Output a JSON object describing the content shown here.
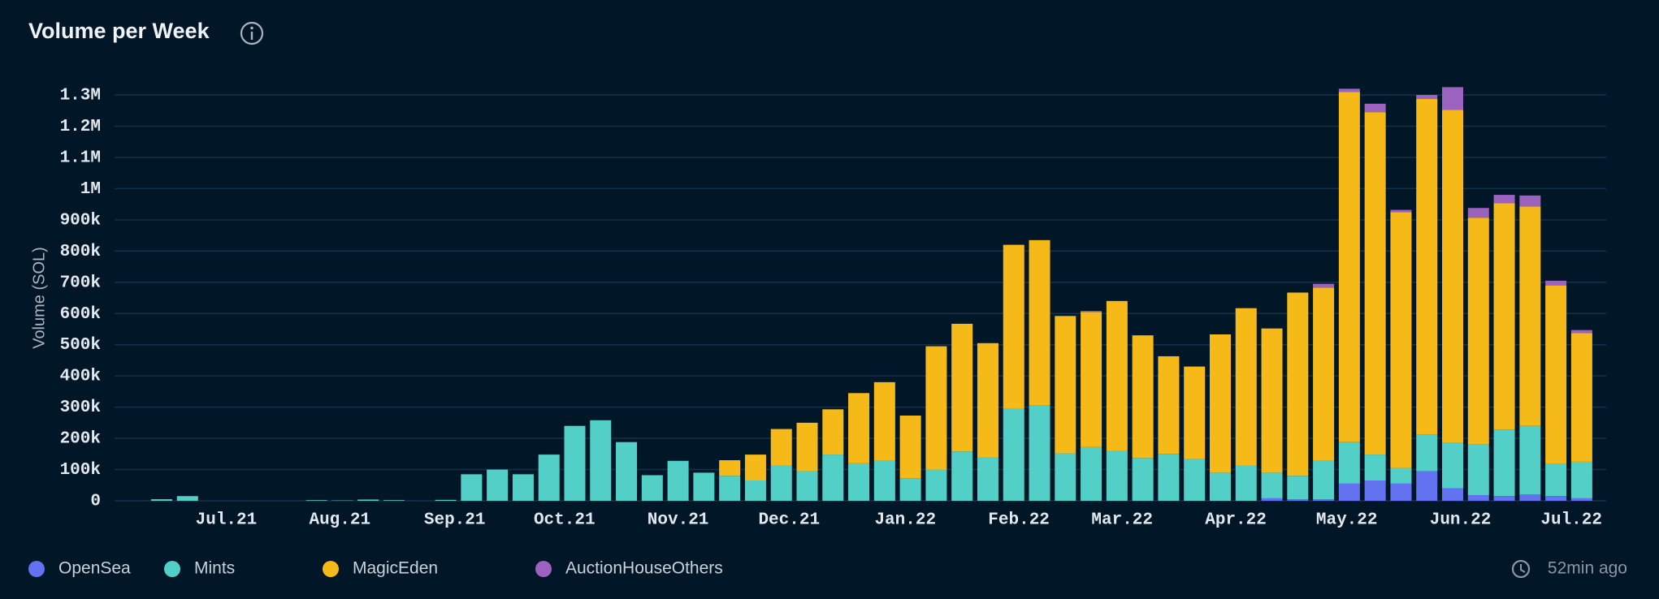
{
  "chart_data": {
    "type": "stacked_bar",
    "title": "Volume per Week",
    "y_label": "Volume (SOL)",
    "updated": "52min ago",
    "categories": [
      null,
      null,
      null,
      null,
      null,
      null,
      null,
      null,
      null,
      null,
      null,
      null,
      null,
      null,
      null,
      null,
      null,
      null,
      null,
      null,
      null,
      null,
      null,
      null,
      null,
      null,
      null,
      null,
      null,
      null,
      null,
      null,
      null,
      null,
      null,
      null,
      null,
      null,
      null,
      null,
      null,
      null,
      null,
      null,
      null,
      null,
      null,
      null,
      null,
      null,
      null,
      null,
      null,
      null,
      null,
      null
    ],
    "xticks": [
      {
        "value": 2.5,
        "label": "Jul.21"
      },
      {
        "value": 6.9,
        "label": "Aug.21"
      },
      {
        "value": 11.35,
        "label": "Sep.21"
      },
      {
        "value": 15.6,
        "label": "Oct.21"
      },
      {
        "value": 20.0,
        "label": "Nov.21"
      },
      {
        "value": 24.3,
        "label": "Dec.21"
      },
      {
        "value": 28.8,
        "label": "Jan.22"
      },
      {
        "value": 33.2,
        "label": "Feb.22"
      },
      {
        "value": 37.2,
        "label": "Mar.22"
      },
      {
        "value": 41.6,
        "label": "Apr.22"
      },
      {
        "value": 45.9,
        "label": "May.22"
      },
      {
        "value": 50.3,
        "label": "Jun.22"
      },
      {
        "value": 54.6,
        "label": "Jul.22"
      }
    ],
    "series": [
      {
        "name": "OpenSea",
        "color": "#6272f0",
        "values": [
          0,
          0,
          0,
          0,
          0,
          0,
          0,
          0,
          0,
          0,
          0,
          0,
          0,
          0,
          0,
          0,
          0,
          0,
          0,
          0,
          0,
          0,
          0,
          0,
          0,
          0,
          0,
          0,
          0,
          0,
          0,
          0,
          0,
          0,
          0,
          0,
          0,
          0,
          0,
          0,
          0,
          0,
          0,
          8000,
          5000,
          5000,
          55000,
          65000,
          55000,
          95000,
          40000,
          18000,
          15000,
          20000,
          15000,
          8000
        ]
      },
      {
        "name": "Mints",
        "color": "#52cfc6",
        "values": [
          5000,
          15000,
          0,
          0,
          0,
          0,
          2000,
          1000,
          4000,
          2000,
          0,
          3000,
          85000,
          100000,
          85000,
          148000,
          240000,
          258000,
          188000,
          82000,
          128000,
          90000,
          80000,
          65000,
          113000,
          95000,
          148000,
          120000,
          130000,
          72000,
          100000,
          158000,
          138000,
          295000,
          305000,
          152000,
          172000,
          160000,
          137000,
          150000,
          133000,
          90000,
          112000,
          82000,
          75000,
          125000,
          133000,
          83000,
          50000,
          118000,
          145000,
          162000,
          213000,
          220000,
          103000,
          117000
        ]
      },
      {
        "name": "MagicEden",
        "color": "#f5ba17",
        "values": [
          0,
          0,
          0,
          0,
          0,
          0,
          0,
          0,
          0,
          0,
          0,
          0,
          0,
          0,
          0,
          0,
          0,
          0,
          0,
          0,
          0,
          0,
          50000,
          83000,
          117000,
          155000,
          145000,
          225000,
          250000,
          201000,
          395000,
          409000,
          367000,
          525000,
          530000,
          440000,
          433000,
          480000,
          393000,
          313000,
          297000,
          443000,
          505000,
          462000,
          587000,
          553000,
          1122000,
          1097000,
          820000,
          1074000,
          1067000,
          727000,
          725000,
          703000,
          572000,
          412000
        ]
      },
      {
        "name": "AuctionHouseOthers",
        "color": "#9b62bf",
        "values": [
          0,
          0,
          0,
          0,
          0,
          0,
          0,
          0,
          0,
          0,
          0,
          0,
          0,
          0,
          0,
          0,
          0,
          0,
          0,
          0,
          0,
          0,
          0,
          0,
          0,
          0,
          0,
          0,
          0,
          0,
          0,
          0,
          0,
          0,
          0,
          0,
          3000,
          0,
          0,
          0,
          0,
          0,
          0,
          0,
          0,
          12000,
          10000,
          27000,
          7000,
          13000,
          73000,
          31000,
          27000,
          35000,
          15000,
          10000
        ]
      }
    ],
    "ylim": [
      0,
      1300000
    ],
    "yticks": [
      0,
      {
        "value": 100000,
        "label": "100k"
      },
      {
        "value": 200000,
        "label": "200k"
      },
      {
        "value": 300000,
        "label": "300k"
      },
      {
        "value": 400000,
        "label": "400k"
      },
      {
        "value": 500000,
        "label": "500k"
      },
      {
        "value": 600000,
        "label": "600k"
      },
      {
        "value": 700000,
        "label": "700k"
      },
      {
        "value": 800000,
        "label": "800k"
      },
      {
        "value": 900000,
        "label": "900k"
      },
      {
        "value": 1000000,
        "label": "1M"
      },
      {
        "value": 1100000,
        "label": "1.1M"
      },
      {
        "value": 1200000,
        "label": "1.2M"
      },
      {
        "value": 1300000,
        "label": "1.3M"
      }
    ],
    "grid": true
  }
}
